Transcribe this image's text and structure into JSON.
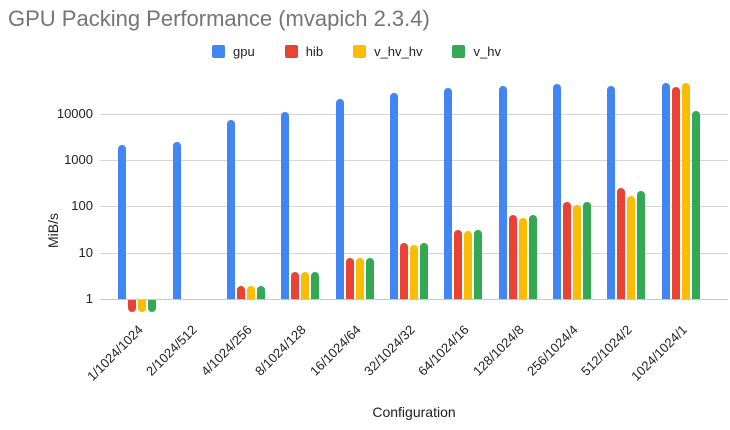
{
  "chart_data": {
    "type": "bar",
    "title": "GPU Packing Performance (mvapich 2.3.4)",
    "xlabel": "Configuration",
    "ylabel": "MiB/s",
    "y_scale": "log",
    "y_ticks": [
      1,
      10,
      100,
      1000,
      10000
    ],
    "ylim": [
      0.4,
      60000
    ],
    "baseline": 1,
    "grid": true,
    "legend_position": "top",
    "categories": [
      "1/1024/1024",
      "2/1024/512",
      "4/1024/256",
      "8/1024/128",
      "16/1024/64",
      "32/1024/32",
      "64/1024/16",
      "128/1024/8",
      "256/1024/4",
      "512/1024/2",
      "1024/1024/1"
    ],
    "series": [
      {
        "name": "gpu",
        "color": "#4285F4",
        "values": [
          2100,
          2500,
          7500,
          11000,
          21000,
          28500,
          36500,
          40000,
          44500,
          40000,
          47000
        ]
      },
      {
        "name": "hib",
        "color": "#EA4335",
        "values": [
          0.55,
          null,
          1.9,
          3.8,
          7.8,
          16,
          31,
          65,
          122,
          245,
          37000
        ]
      },
      {
        "name": "v_hv_hv",
        "color": "#FBBC04",
        "values": [
          0.55,
          null,
          1.9,
          3.9,
          7.8,
          14.5,
          29,
          55,
          108,
          165,
          46000
        ]
      },
      {
        "name": "v_hv",
        "color": "#34A853",
        "values": [
          0.55,
          null,
          1.9,
          3.8,
          7.8,
          16,
          31,
          66,
          125,
          220,
          11500
        ]
      }
    ]
  }
}
